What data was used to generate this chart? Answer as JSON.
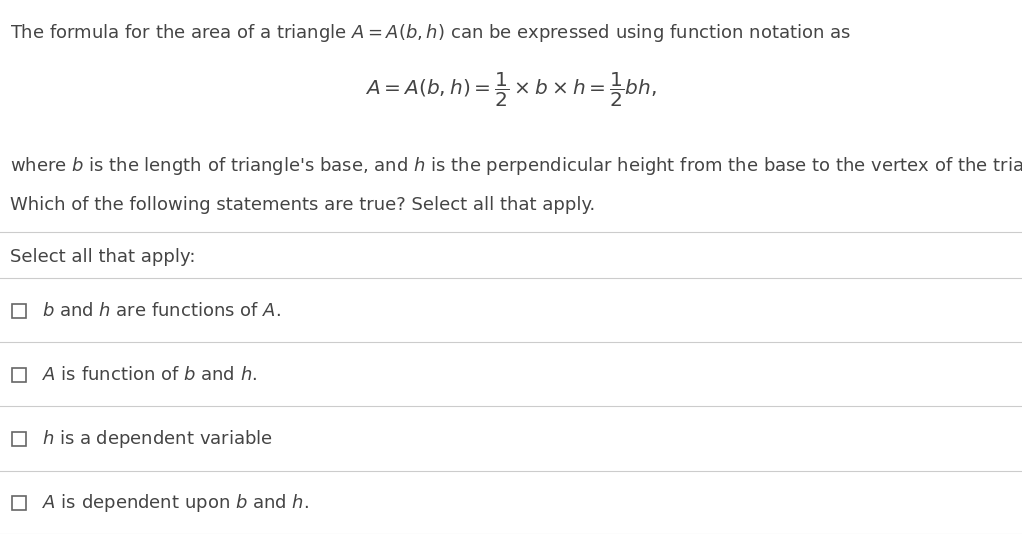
{
  "background_color": "#ffffff",
  "text_color": "#444444",
  "line_color": "#cccccc",
  "title_line": "The formula for the area of a triangle $A = A(b, h)$ can be expressed using function notation as",
  "formula": "$A = A(b, h) = \\dfrac{1}{2} \\times b \\times h = \\dfrac{1}{2}bh,$",
  "where_line": "where $\\mathit{b}$ is the length of triangle's base, and $\\mathit{h}$ is the perpendicular height from the base to the vertex of the triangle.",
  "which_line": "Which of the following statements are true? Select all that apply.",
  "select_label": "Select all that apply:",
  "options": [
    "$\\mathit{b}$ and $\\mathit{h}$ are functions of $A$.",
    "$A$ is function of $\\mathit{b}$ and $\\mathit{h}$.",
    "$\\mathit{h}$ is a dependent variable",
    "$A$ is dependent upon $\\mathit{b}$ and $\\mathit{h}$."
  ],
  "figsize": [
    10.22,
    5.34
  ],
  "dpi": 100,
  "font_size_main": 13.0,
  "font_size_formula": 14.5,
  "checkbox_size": 14
}
